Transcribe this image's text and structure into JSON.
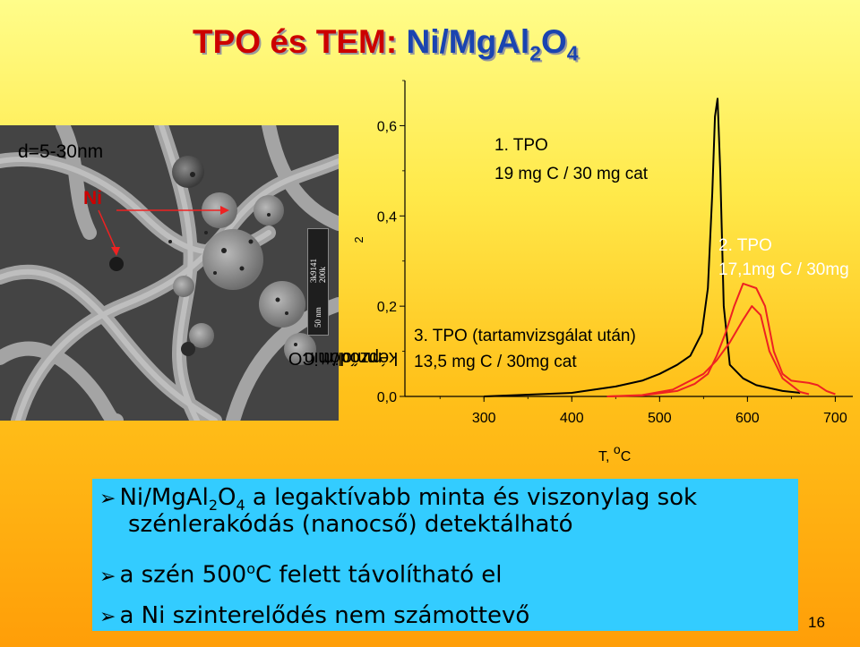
{
  "slide": {
    "title_part1": "TPO és TEM: ",
    "title_part2_main": "Ni/MgAl",
    "title_sub1": "2",
    "title_mid": "O",
    "title_sub2": "4",
    "page_number": "16"
  },
  "tem": {
    "size_label": "d=5-30nm",
    "ni_label": "Ni",
    "scale_text1": "3k9141",
    "scale_text2": "200k",
    "scale_text3": "50 nm"
  },
  "chart_data": {
    "type": "line",
    "ylabel_main": "képződött CO",
    "ylabel_sub": "2",
    "ylabel_unit": "mmol/min",
    "xlabel": "T, ",
    "xlabel_sup": "o",
    "xlabel_unit": "C",
    "xlim": [
      210,
      720
    ],
    "ylim": [
      0.0,
      0.7
    ],
    "xticks": [
      "300",
      "400",
      "500",
      "600",
      "700"
    ],
    "yticks": [
      "0,0",
      "0,2",
      "0,4",
      "0,6"
    ],
    "annotations": [
      {
        "line1": "1. TPO",
        "line2": "19 mg C / 30 mg cat",
        "color": "#000000"
      },
      {
        "line1": "2. TPO",
        "line2": "17,1mg C / 30mg",
        "color": "#ffffff"
      },
      {
        "line1": "3. TPO (tartamvizsgálat után)",
        "line2": "13,5 mg C / 30mg cat",
        "color": "#000000"
      }
    ],
    "series": [
      {
        "color": "#000000",
        "points": [
          [
            300,
            0.0
          ],
          [
            400,
            0.008
          ],
          [
            450,
            0.022
          ],
          [
            480,
            0.035
          ],
          [
            500,
            0.05
          ],
          [
            520,
            0.07
          ],
          [
            535,
            0.09
          ],
          [
            548,
            0.14
          ],
          [
            555,
            0.24
          ],
          [
            560,
            0.45
          ],
          [
            563,
            0.62
          ],
          [
            566,
            0.66
          ],
          [
            569,
            0.5
          ],
          [
            573,
            0.2
          ],
          [
            580,
            0.07
          ],
          [
            595,
            0.04
          ],
          [
            610,
            0.025
          ],
          [
            640,
            0.012
          ],
          [
            660,
            0.008
          ]
        ]
      },
      {
        "color": "#ee2222",
        "points": [
          [
            440,
            0.0
          ],
          [
            480,
            0.002
          ],
          [
            520,
            0.012
          ],
          [
            540,
            0.028
          ],
          [
            555,
            0.05
          ],
          [
            565,
            0.09
          ],
          [
            575,
            0.14
          ],
          [
            585,
            0.2
          ],
          [
            595,
            0.25
          ],
          [
            610,
            0.24
          ],
          [
            620,
            0.2
          ],
          [
            630,
            0.1
          ],
          [
            640,
            0.05
          ],
          [
            650,
            0.035
          ],
          [
            670,
            0.03
          ],
          [
            680,
            0.025
          ],
          [
            690,
            0.012
          ],
          [
            700,
            0.005
          ]
        ]
      },
      {
        "color": "#ee2222",
        "points": [
          [
            440,
            0.0
          ],
          [
            480,
            0.003
          ],
          [
            515,
            0.015
          ],
          [
            535,
            0.035
          ],
          [
            550,
            0.05
          ],
          [
            565,
            0.08
          ],
          [
            580,
            0.12
          ],
          [
            595,
            0.17
          ],
          [
            605,
            0.2
          ],
          [
            615,
            0.18
          ],
          [
            625,
            0.1
          ],
          [
            640,
            0.04
          ],
          [
            660,
            0.01
          ],
          [
            670,
            0.005
          ]
        ]
      }
    ]
  },
  "bullets": [
    {
      "text_a": "Ni/MgAl",
      "sub_a": "2",
      "text_b": "O",
      "sub_b": "4",
      "text_c": " a legaktívabb minta és viszonylag sok",
      "line2": "szénlerakódás (nanocső) detektálható"
    },
    {
      "text_a": "a szén 500",
      "sup": "o",
      "text_b": "C felett távolítható el"
    },
    {
      "text_a": "a Ni szinterelődés nem számottevő"
    }
  ]
}
